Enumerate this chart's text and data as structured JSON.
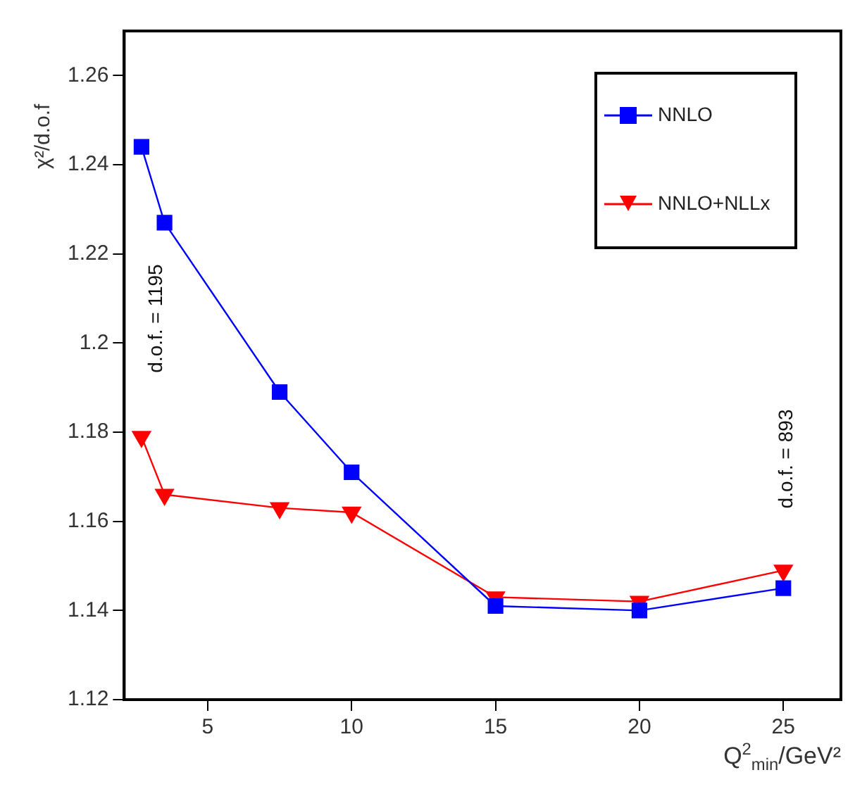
{
  "chart_data": {
    "type": "line",
    "xlabel": "Q$^{2}$$_{min}$/GeV²",
    "ylabel": "χ²/d.o.f",
    "x": [
      2.7,
      3.5,
      7.5,
      10,
      15,
      20,
      25
    ],
    "series": [
      {
        "name": "NNLO",
        "color": "#0000ff",
        "marker": "square",
        "values": [
          1.244,
          1.227,
          1.189,
          1.171,
          1.141,
          1.14,
          1.145
        ]
      },
      {
        "name": "NNLO+NLLx",
        "color": "#ff0000",
        "marker": "triangle",
        "values": [
          1.179,
          1.166,
          1.163,
          1.162,
          1.143,
          1.142,
          1.149
        ]
      }
    ],
    "xlim": [
      2.1,
      27
    ],
    "xticks": [
      5,
      10,
      15,
      20,
      25
    ],
    "ylim": [
      1.12,
      1.27
    ],
    "yticks": [
      1.12,
      1.14,
      1.16,
      1.18,
      1.2,
      1.22,
      1.24,
      1.26
    ],
    "grid": false,
    "legend": "top right",
    "annotations": [
      "d.o.f. = 1195",
      "d.o.f. = 893"
    ]
  }
}
